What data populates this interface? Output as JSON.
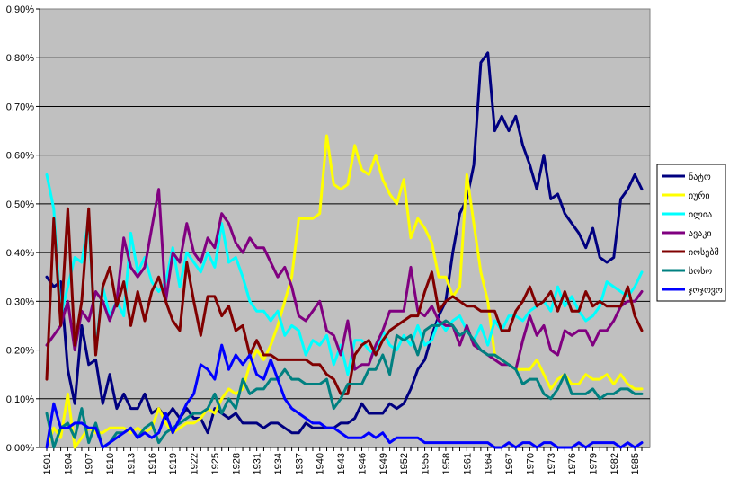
{
  "chart_data": {
    "type": "line",
    "title": "",
    "xlabel": "",
    "ylabel": "",
    "ylim": [
      0,
      0.009
    ],
    "y_ticks": [
      "0.00%",
      "0.10%",
      "0.20%",
      "0.30%",
      "0.40%",
      "0.50%",
      "0.60%",
      "0.70%",
      "0.80%",
      "0.90%"
    ],
    "x_ticks": [
      "1901",
      "1904",
      "1907",
      "1910",
      "1913",
      "1916",
      "1919",
      "1922",
      "1925",
      "1928",
      "1931",
      "1934",
      "1937",
      "1940",
      "1943",
      "1946",
      "1949",
      "1952",
      "1955",
      "1958",
      "1961",
      "1964",
      "1967",
      "1970",
      "1973",
      "1976",
      "1979",
      "1982",
      "1985"
    ],
    "x": [
      1901,
      1902,
      1903,
      1904,
      1905,
      1906,
      1907,
      1908,
      1909,
      1910,
      1911,
      1912,
      1913,
      1914,
      1915,
      1916,
      1917,
      1918,
      1919,
      1920,
      1921,
      1922,
      1923,
      1924,
      1925,
      1926,
      1927,
      1928,
      1929,
      1930,
      1931,
      1932,
      1933,
      1934,
      1935,
      1936,
      1937,
      1938,
      1939,
      1940,
      1941,
      1942,
      1943,
      1944,
      1945,
      1946,
      1947,
      1948,
      1949,
      1950,
      1951,
      1952,
      1953,
      1954,
      1955,
      1956,
      1957,
      1958,
      1959,
      1960,
      1961,
      1962,
      1963,
      1964,
      1965,
      1966,
      1967,
      1968,
      1969,
      1970,
      1971,
      1972,
      1973,
      1974,
      1975,
      1976,
      1977,
      1978,
      1979,
      1980,
      1981,
      1982,
      1983,
      1984,
      1985,
      1986
    ],
    "grid": true,
    "plot_background": "#c0c0c0",
    "legend_position": "right",
    "series": [
      {
        "name": "ნატო",
        "color": "#000080",
        "values": [
          0.0035,
          0.0033,
          0.0034,
          0.0016,
          0.0009,
          0.0025,
          0.0017,
          0.0018,
          0.0009,
          0.0015,
          0.0008,
          0.0011,
          0.0008,
          0.0008,
          0.0011,
          0.0007,
          0.0008,
          0.0006,
          0.0008,
          0.0006,
          0.0008,
          0.0006,
          0.0006,
          0.0003,
          0.0008,
          0.0007,
          0.0006,
          0.0007,
          0.0005,
          0.0005,
          0.0005,
          0.0004,
          0.0005,
          0.0005,
          0.0004,
          0.0003,
          0.0003,
          0.0005,
          0.0004,
          0.0004,
          0.0004,
          0.0004,
          0.0005,
          0.0005,
          0.0006,
          0.0009,
          0.0007,
          0.0007,
          0.0007,
          0.0009,
          0.0008,
          0.0009,
          0.0012,
          0.0016,
          0.0018,
          0.0023,
          0.0027,
          0.003,
          0.004,
          0.0048,
          0.0051,
          0.0058,
          0.0079,
          0.0081,
          0.0065,
          0.0068,
          0.0065,
          0.0068,
          0.0062,
          0.0058,
          0.0053,
          0.006,
          0.0051,
          0.0052,
          0.0048,
          0.0046,
          0.0044,
          0.0041,
          0.0045,
          0.0039,
          0.0038,
          0.0039,
          0.0051,
          0.0053,
          0.0056,
          0.0053
        ]
      },
      {
        "name": "იური",
        "color": "#ffff00",
        "values": [
          0.0,
          0.0004,
          0.0002,
          0.0011,
          0.0,
          0.0002,
          0.0004,
          0.0003,
          0.0003,
          0.0004,
          0.0004,
          0.0004,
          0.0003,
          0.0004,
          0.0003,
          0.0004,
          0.0008,
          0.0005,
          0.0003,
          0.0004,
          0.0005,
          0.0005,
          0.0006,
          0.0008,
          0.0007,
          0.001,
          0.0012,
          0.0011,
          0.0012,
          0.0017,
          0.002,
          0.0018,
          0.0021,
          0.0025,
          0.003,
          0.0035,
          0.0047,
          0.0047,
          0.0047,
          0.0048,
          0.0064,
          0.0054,
          0.0053,
          0.0054,
          0.0062,
          0.0057,
          0.0056,
          0.006,
          0.0055,
          0.0052,
          0.005,
          0.0055,
          0.0043,
          0.0047,
          0.0045,
          0.0042,
          0.0035,
          0.0035,
          0.0031,
          0.0033,
          0.0056,
          0.0046,
          0.0036,
          0.003,
          0.0019,
          0.0018,
          0.0017,
          0.0016,
          0.0016,
          0.0016,
          0.0018,
          0.0015,
          0.0012,
          0.0014,
          0.0015,
          0.0013,
          0.0013,
          0.0015,
          0.0014,
          0.0014,
          0.0015,
          0.0013,
          0.0015,
          0.0013,
          0.0012,
          0.0012
        ]
      },
      {
        "name": "ილია",
        "color": "#00ffff",
        "values": [
          0.0056,
          0.0049,
          0.0027,
          0.0033,
          0.0039,
          0.0038,
          0.0047,
          0.002,
          0.0033,
          0.0027,
          0.003,
          0.0027,
          0.0044,
          0.0036,
          0.0039,
          0.0034,
          0.0032,
          0.0034,
          0.0041,
          0.0033,
          0.004,
          0.0038,
          0.0036,
          0.004,
          0.0037,
          0.0046,
          0.0038,
          0.0039,
          0.0035,
          0.003,
          0.0028,
          0.0028,
          0.0026,
          0.0028,
          0.0023,
          0.0025,
          0.0024,
          0.0019,
          0.0022,
          0.0021,
          0.0023,
          0.0017,
          0.0021,
          0.0015,
          0.0022,
          0.0022,
          0.002,
          0.0019,
          0.0024,
          0.0021,
          0.002,
          0.0023,
          0.0021,
          0.0025,
          0.0021,
          0.0022,
          0.0026,
          0.0024,
          0.0026,
          0.0027,
          0.0024,
          0.0022,
          0.0025,
          0.0021,
          0.0026,
          0.0024,
          0.0027,
          0.0027,
          0.0026,
          0.0028,
          0.0029,
          0.003,
          0.0028,
          0.0033,
          0.0029,
          0.0031,
          0.0028,
          0.0026,
          0.0027,
          0.0029,
          0.0034,
          0.0033,
          0.0032,
          0.0031,
          0.0033,
          0.0036
        ]
      },
      {
        "name": "ავაკი",
        "color": "#800080",
        "values": [
          0.0021,
          0.0023,
          0.0025,
          0.003,
          0.002,
          0.0028,
          0.0026,
          0.0032,
          0.003,
          0.0026,
          0.003,
          0.0043,
          0.0037,
          0.0035,
          0.0037,
          0.0045,
          0.0053,
          0.003,
          0.004,
          0.0038,
          0.0046,
          0.004,
          0.0038,
          0.0043,
          0.0041,
          0.0048,
          0.0046,
          0.0042,
          0.004,
          0.0043,
          0.0041,
          0.0041,
          0.0038,
          0.0035,
          0.0037,
          0.0033,
          0.0027,
          0.0026,
          0.0028,
          0.003,
          0.0024,
          0.0023,
          0.0019,
          0.0026,
          0.0016,
          0.0017,
          0.0017,
          0.0021,
          0.0024,
          0.0028,
          0.0028,
          0.0028,
          0.0037,
          0.0028,
          0.0027,
          0.0029,
          0.0026,
          0.0025,
          0.0025,
          0.0021,
          0.0025,
          0.0021,
          0.002,
          0.0019,
          0.0018,
          0.0017,
          0.0017,
          0.0016,
          0.0022,
          0.0027,
          0.0023,
          0.0025,
          0.002,
          0.0019,
          0.0024,
          0.0023,
          0.0024,
          0.0024,
          0.0021,
          0.0024,
          0.0024,
          0.0026,
          0.0029,
          0.003,
          0.003,
          0.0032
        ]
      },
      {
        "name": "იოსებმ",
        "color": "#800000",
        "values": [
          0.0014,
          0.0047,
          0.0025,
          0.0049,
          0.0021,
          0.003,
          0.0049,
          0.0019,
          0.0033,
          0.0037,
          0.0029,
          0.0034,
          0.0025,
          0.0032,
          0.0026,
          0.0032,
          0.0035,
          0.003,
          0.0026,
          0.0024,
          0.0038,
          0.003,
          0.0023,
          0.0031,
          0.0031,
          0.0027,
          0.0029,
          0.0024,
          0.0025,
          0.0019,
          0.0022,
          0.0019,
          0.0019,
          0.0018,
          0.0018,
          0.0018,
          0.0018,
          0.0018,
          0.0017,
          0.0017,
          0.0015,
          0.0014,
          0.0011,
          0.0011,
          0.0019,
          0.0021,
          0.0022,
          0.0019,
          0.0022,
          0.0024,
          0.0025,
          0.0026,
          0.0027,
          0.0027,
          0.0032,
          0.0036,
          0.0028,
          0.003,
          0.0031,
          0.003,
          0.0029,
          0.0029,
          0.0028,
          0.0028,
          0.0028,
          0.0024,
          0.0024,
          0.0028,
          0.003,
          0.0033,
          0.0029,
          0.003,
          0.0032,
          0.0028,
          0.0032,
          0.0028,
          0.0028,
          0.0032,
          0.0029,
          0.003,
          0.0029,
          0.0029,
          0.0029,
          0.0033,
          0.0027,
          0.0024
        ]
      },
      {
        "name": "სოსო",
        "color": "#008080",
        "values": [
          0.0007,
          0.0,
          0.0004,
          0.0005,
          0.0002,
          0.0008,
          0.0001,
          0.0005,
          0.0,
          0.0001,
          0.0003,
          0.0003,
          0.0004,
          0.0002,
          0.0004,
          0.0005,
          0.0001,
          0.0003,
          0.0004,
          0.0005,
          0.0006,
          0.0007,
          0.0007,
          0.0008,
          0.0011,
          0.0007,
          0.001,
          0.0008,
          0.0014,
          0.0011,
          0.0012,
          0.0012,
          0.0014,
          0.0014,
          0.0016,
          0.0014,
          0.0014,
          0.0013,
          0.0013,
          0.0013,
          0.0014,
          0.0008,
          0.001,
          0.0013,
          0.0013,
          0.0013,
          0.0016,
          0.0016,
          0.0019,
          0.0015,
          0.0023,
          0.0022,
          0.0023,
          0.0019,
          0.0024,
          0.0025,
          0.0025,
          0.0026,
          0.0025,
          0.0023,
          0.0024,
          0.0022,
          0.002,
          0.0019,
          0.0019,
          0.0018,
          0.0017,
          0.0016,
          0.0013,
          0.0014,
          0.0014,
          0.0011,
          0.001,
          0.0012,
          0.0015,
          0.0011,
          0.0011,
          0.0011,
          0.0012,
          0.001,
          0.0011,
          0.0011,
          0.0012,
          0.0012,
          0.0011,
          0.0011
        ]
      },
      {
        "name": "ჯოჯოვო",
        "color": "#0000ff",
        "values": [
          0.0,
          0.0009,
          0.0004,
          0.0004,
          0.0005,
          0.0005,
          0.0004,
          0.0004,
          0.0,
          0.0001,
          0.0002,
          0.0003,
          0.0004,
          0.0002,
          0.0003,
          0.0002,
          0.0003,
          0.0007,
          0.0003,
          0.0006,
          0.0009,
          0.0011,
          0.0017,
          0.0016,
          0.0014,
          0.0021,
          0.0016,
          0.0019,
          0.0017,
          0.0019,
          0.0015,
          0.0014,
          0.0018,
          0.0014,
          0.001,
          0.0008,
          0.0007,
          0.0006,
          0.0005,
          0.0005,
          0.0004,
          0.0004,
          0.0003,
          0.0002,
          0.0002,
          0.0002,
          0.0003,
          0.0002,
          0.0003,
          0.0001,
          0.0002,
          0.0002,
          0.0002,
          0.0002,
          0.0001,
          0.0001,
          0.0001,
          0.0001,
          0.0001,
          0.0001,
          0.0001,
          0.0001,
          0.0001,
          0.0001,
          0.0,
          0.0,
          0.0001,
          0.0,
          0.0001,
          0.0001,
          0.0,
          0.0001,
          0.0001,
          0.0,
          0.0,
          0.0,
          0.0001,
          0.0,
          0.0001,
          0.0001,
          0.0001,
          0.0001,
          0.0,
          0.0001,
          0.0,
          0.0001
        ]
      }
    ]
  }
}
